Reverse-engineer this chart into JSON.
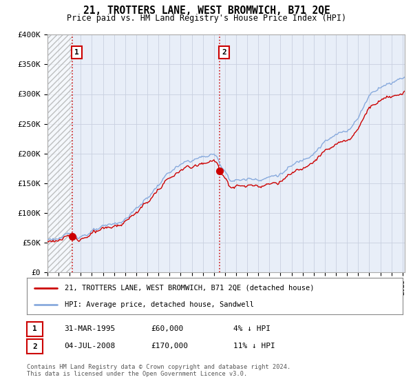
{
  "title": "21, TROTTERS LANE, WEST BROMWICH, B71 2QE",
  "subtitle": "Price paid vs. HM Land Registry's House Price Index (HPI)",
  "ylim": [
    0,
    400000
  ],
  "yticks": [
    0,
    50000,
    100000,
    150000,
    200000,
    250000,
    300000,
    350000,
    400000
  ],
  "ytick_labels": [
    "£0",
    "£50K",
    "£100K",
    "£150K",
    "£200K",
    "£250K",
    "£300K",
    "£350K",
    "£400K"
  ],
  "xstart": 1993,
  "xend": 2025.2,
  "transaction1_date_num": 1995.25,
  "transaction1_price": 60000,
  "transaction2_date_num": 2008.5,
  "transaction2_price": 170000,
  "line_color_property": "#cc0000",
  "line_color_hpi": "#88aadd",
  "legend_property": "21, TROTTERS LANE, WEST BROMWICH, B71 2QE (detached house)",
  "legend_hpi": "HPI: Average price, detached house, Sandwell",
  "table_row1": [
    "1",
    "31-MAR-1995",
    "£60,000",
    "4% ↓ HPI"
  ],
  "table_row2": [
    "2",
    "04-JUL-2008",
    "£170,000",
    "11% ↓ HPI"
  ],
  "footer": "Contains HM Land Registry data © Crown copyright and database right 2024.\nThis data is licensed under the Open Government Licence v3.0.",
  "background_color": "#ffffff",
  "plot_bg_color": "#e8eef8",
  "grid_color": "#c8cfe0",
  "hatch_color": "#aaaaaa"
}
